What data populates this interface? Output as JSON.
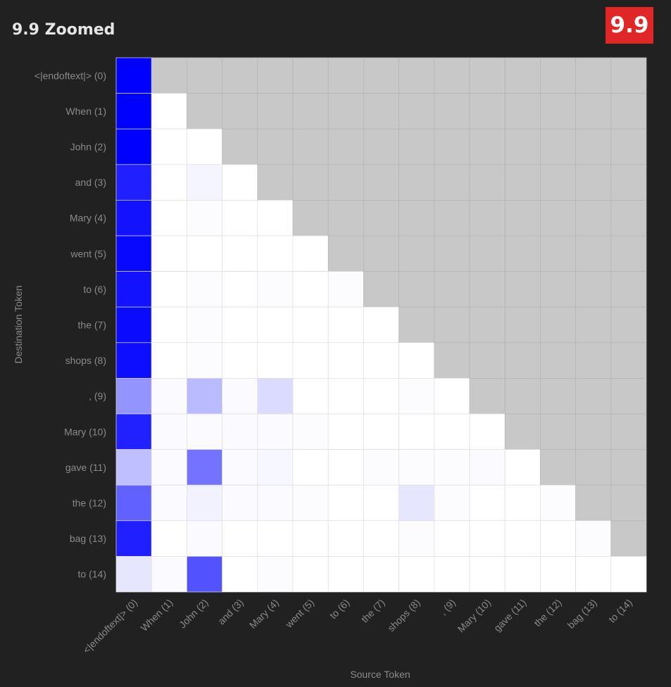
{
  "header": {
    "title": "9.9 Zoomed",
    "badge": "9.9"
  },
  "chart_data": {
    "type": "heatmap",
    "title": "9.9 Zoomed",
    "xlabel": "Source Token",
    "ylabel": "Destination Token",
    "x_tokens": [
      "<|endoftext|> (0)",
      "When (1)",
      "John (2)",
      "and (3)",
      "Mary (4)",
      "went (5)",
      "to (6)",
      "the (7)",
      "shops (8)",
      ", (9)",
      "Mary (10)",
      "gave (11)",
      "the (12)",
      "bag (13)",
      "to (14)"
    ],
    "y_tokens": [
      "<|endoftext|> (0)",
      "When (1)",
      "John (2)",
      "and (3)",
      "Mary (4)",
      "went (5)",
      "to (6)",
      "the (7)",
      "shops (8)",
      ", (9)",
      "Mary (10)",
      "gave (11)",
      "the (12)",
      "bag (13)",
      "to (14)"
    ],
    "mask": "upper-triangle-gray",
    "colors": {
      "background": "#212121",
      "masked": "#c8c8c8",
      "low": "#ffffff",
      "high": "#0000ff",
      "badge": "#e02626"
    },
    "values": [
      [
        1.0
      ],
      [
        1.0,
        0.0
      ],
      [
        1.0,
        0.0,
        0.0
      ],
      [
        0.88,
        0.0,
        0.04,
        0.0
      ],
      [
        0.93,
        0.0,
        0.01,
        0.0,
        0.0
      ],
      [
        0.97,
        0.0,
        0.0,
        0.0,
        0.0,
        0.0
      ],
      [
        0.93,
        0.0,
        0.01,
        0.0,
        0.01,
        0.0,
        0.01
      ],
      [
        0.96,
        0.0,
        0.01,
        0.0,
        0.0,
        0.0,
        0.0,
        0.0
      ],
      [
        0.95,
        0.0,
        0.01,
        0.0,
        0.0,
        0.0,
        0.0,
        0.0,
        0.0
      ],
      [
        0.42,
        0.02,
        0.27,
        0.02,
        0.14,
        0.0,
        0.0,
        0.0,
        0.01,
        0.0
      ],
      [
        0.87,
        0.02,
        0.02,
        0.02,
        0.02,
        0.01,
        0.0,
        0.0,
        0.0,
        0.0,
        0.0
      ],
      [
        0.25,
        0.02,
        0.55,
        0.02,
        0.03,
        0.0,
        0.0,
        0.01,
        0.01,
        0.01,
        0.02,
        0.0
      ],
      [
        0.62,
        0.02,
        0.05,
        0.02,
        0.02,
        0.01,
        0.0,
        0.0,
        0.1,
        0.01,
        0.0,
        0.0,
        0.01
      ],
      [
        0.88,
        0.0,
        0.02,
        0.0,
        0.0,
        0.0,
        0.0,
        0.0,
        0.01,
        0.0,
        0.0,
        0.0,
        0.0,
        0.01
      ],
      [
        0.1,
        0.02,
        0.68,
        0.0,
        0.01,
        0.0,
        0.0,
        0.0,
        0.0,
        0.0,
        0.0,
        0.0,
        0.0,
        0.0,
        0.0
      ]
    ]
  }
}
